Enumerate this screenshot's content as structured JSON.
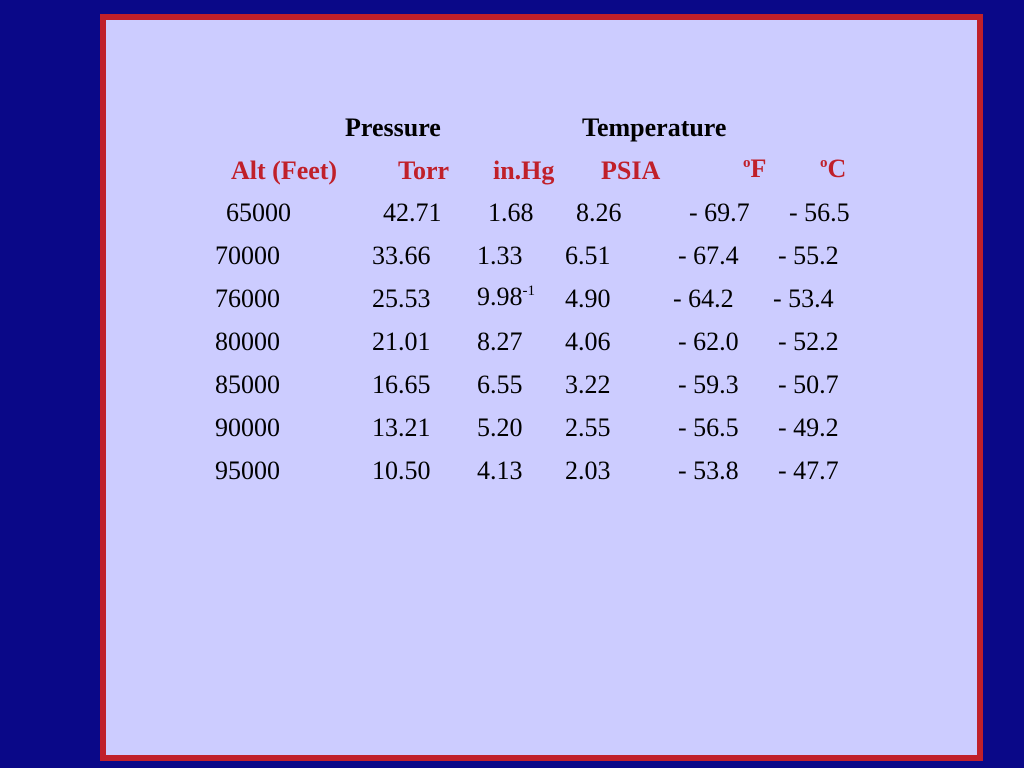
{
  "table": {
    "group_headers": [
      "Pressure",
      "Temperature"
    ],
    "columns": [
      {
        "text": "Alt (Feet)"
      },
      {
        "text": "Torr"
      },
      {
        "text": "in.Hg"
      },
      {
        "text": "PSIA"
      },
      {
        "sup": "o",
        "text": "F"
      },
      {
        "sup": "o",
        "text": "C"
      }
    ],
    "rows": [
      [
        {
          "text": "65000"
        },
        {
          "text": "42.71"
        },
        {
          "text": "1.68"
        },
        {
          "text": "8.26"
        },
        {
          "text": "- 69.7"
        },
        {
          "text": "- 56.5"
        }
      ],
      [
        {
          "text": "70000"
        },
        {
          "text": "33.66"
        },
        {
          "text": "1.33"
        },
        {
          "text": "6.51"
        },
        {
          "text": "- 67.4"
        },
        {
          "text": "- 55.2"
        }
      ],
      [
        {
          "text": "76000"
        },
        {
          "text": "25.53"
        },
        {
          "text": "9.98",
          "sup": "-1"
        },
        {
          "text": "4.90"
        },
        {
          "text": "- 64.2"
        },
        {
          "text": "- 53.4"
        }
      ],
      [
        {
          "text": "80000"
        },
        {
          "text": "21.01"
        },
        {
          "text": "8.27"
        },
        {
          "text": "4.06"
        },
        {
          "text": "- 62.0"
        },
        {
          "text": "- 52.2"
        }
      ],
      [
        {
          "text": "85000"
        },
        {
          "text": "16.65"
        },
        {
          "text": "6.55"
        },
        {
          "text": "3.22"
        },
        {
          "text": "- 59.3"
        },
        {
          "text": "- 50.7"
        }
      ],
      [
        {
          "text": "90000"
        },
        {
          "text": "13.21"
        },
        {
          "text": "5.20"
        },
        {
          "text": "2.55"
        },
        {
          "text": "- 56.5"
        },
        {
          "text": "- 49.2"
        }
      ],
      [
        {
          "text": "95000"
        },
        {
          "text": "10.50"
        },
        {
          "text": "4.13"
        },
        {
          "text": "2.03"
        },
        {
          "text": "- 53.8"
        },
        {
          "text": "- 47.7"
        }
      ]
    ]
  }
}
